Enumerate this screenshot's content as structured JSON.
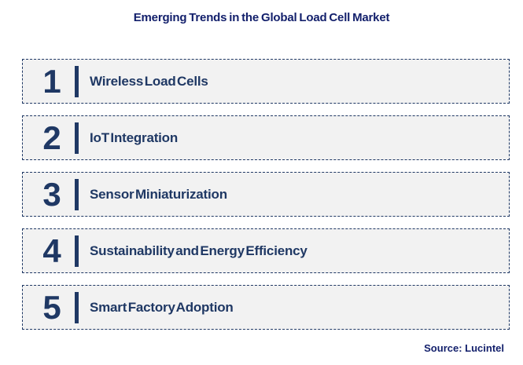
{
  "title": "Emerging Trends in the Global Load Cell Market",
  "source": "Source: Lucintel",
  "colors": {
    "navy_accent": "#1F3864",
    "title_navy": "#121F6B",
    "row_background": "#F2F2F2",
    "page_background": "#FFFFFF"
  },
  "trends": [
    {
      "number": "1",
      "label": "Wireless Load Cells"
    },
    {
      "number": "2",
      "label": "IoT Integration"
    },
    {
      "number": "3",
      "label": "Sensor Miniaturization"
    },
    {
      "number": "4",
      "label": "Sustainability and Energy Efficiency"
    },
    {
      "number": "5",
      "label": "Smart Factory Adoption"
    }
  ]
}
